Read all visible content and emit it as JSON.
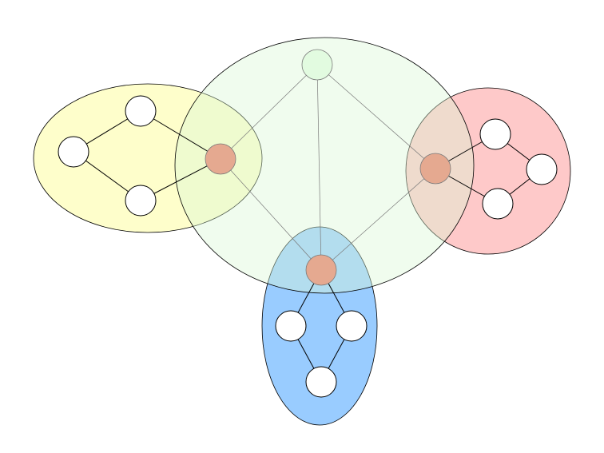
{
  "diagram": {
    "type": "network-of-clusters",
    "colors": {
      "background": "#ffffff",
      "cluster_yellow": "#fefecb",
      "cluster_green": "#d9f7d4",
      "cluster_red": "#fec9c9",
      "cluster_blue": "#99ccff",
      "hub_node": "#e5a990",
      "top_node": "#e2fbe0",
      "leaf_node": "#ffffff",
      "stroke": "#000000",
      "hub_link": "#7a7a7a"
    },
    "clusters": [
      {
        "id": "yellow-cluster",
        "color_key": "cluster_yellow",
        "opacity": 1.0,
        "leaf_count": 3
      },
      {
        "id": "red-cluster",
        "color_key": "cluster_red",
        "opacity": 1.0,
        "leaf_count": 3
      },
      {
        "id": "blue-cluster",
        "color_key": "cluster_blue",
        "opacity": 1.0,
        "leaf_count": 3
      },
      {
        "id": "central-cluster",
        "color_key": "cluster_green",
        "opacity": 0.4,
        "leaf_count": 0
      }
    ],
    "top_node": "top-node",
    "hub_nodes": [
      "hub-left",
      "hub-right",
      "hub-bottom"
    ]
  }
}
